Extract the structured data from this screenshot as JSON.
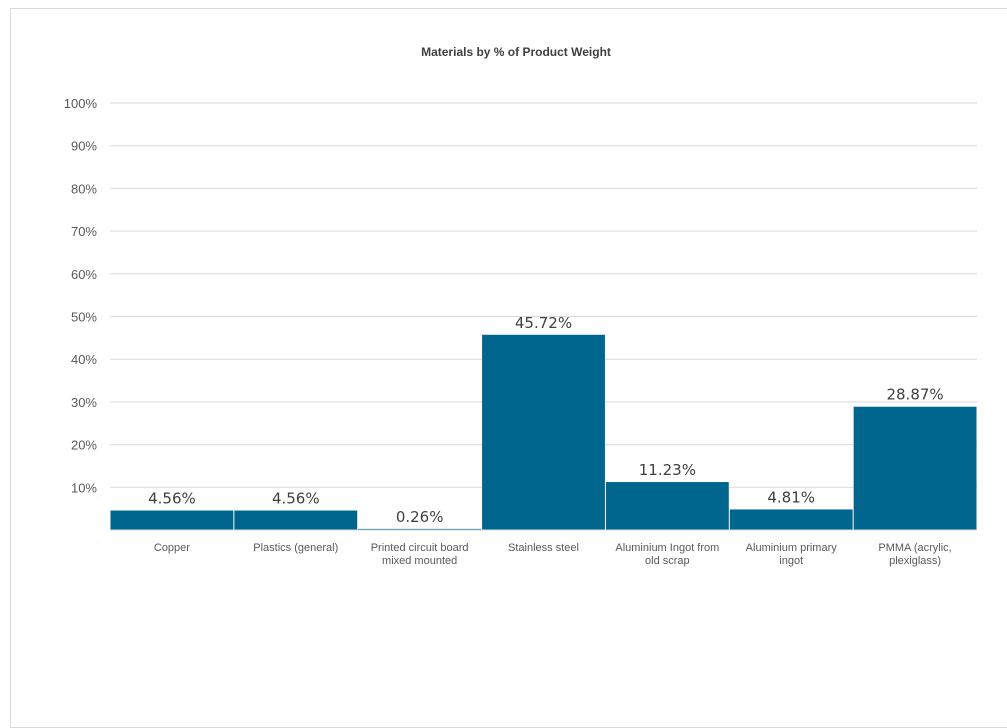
{
  "chart_data": {
    "type": "bar",
    "title": "Materials by % of Product Weight",
    "xlabel": "",
    "ylabel": "",
    "categories": [
      [
        "Copper"
      ],
      [
        "Plastics (general)"
      ],
      [
        "Printed circuit board",
        "mixed mounted"
      ],
      [
        "Stainless steel"
      ],
      [
        "Aluminium Ingot from",
        "old scrap"
      ],
      [
        "Aluminium primary",
        "ingot"
      ],
      [
        "PMMA (acrylic,",
        "plexiglass)"
      ]
    ],
    "values": [
      4.56,
      4.56,
      0.26,
      45.72,
      11.23,
      4.81,
      28.87
    ],
    "value_labels": [
      "4.56%",
      "4.56%",
      "0.26%",
      "45.72%",
      "11.23%",
      "4.81%",
      "28.87%"
    ],
    "ylim": [
      0,
      100
    ],
    "yticks": [
      10,
      20,
      30,
      40,
      50,
      60,
      70,
      80,
      90,
      100
    ],
    "ytick_labels": [
      "10%",
      "20%",
      "30%",
      "40%",
      "50%",
      "60%",
      "70%",
      "80%",
      "90%",
      "100%"
    ],
    "grid": true,
    "legend": "none",
    "bar_color": "#00668E",
    "grid_color": "#d9d9d9"
  }
}
